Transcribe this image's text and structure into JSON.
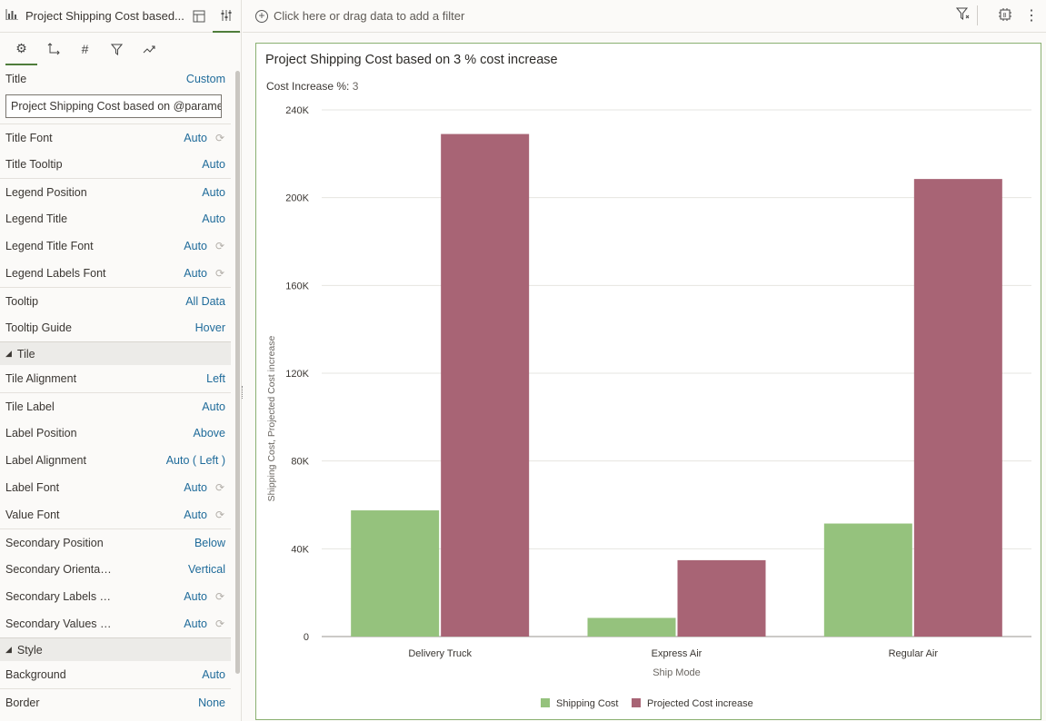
{
  "panel": {
    "viz_title": "Project Shipping Cost based...",
    "tabs": [
      "general",
      "axis",
      "values",
      "filters",
      "analytics"
    ],
    "title_row": {
      "label": "Title",
      "value": "Custom"
    },
    "title_input": "Project Shipping Cost based on @parameter",
    "general_rows": [
      {
        "label": "Title Font",
        "value": "Auto",
        "reset": true,
        "sep": true
      },
      {
        "label": "Title Tooltip",
        "value": "Auto",
        "reset": false,
        "sep": false
      },
      {
        "label": "Legend Position",
        "value": "Auto",
        "reset": false,
        "sep": true
      },
      {
        "label": "Legend Title",
        "value": "Auto",
        "reset": false,
        "sep": false
      },
      {
        "label": "Legend Title Font",
        "value": "Auto",
        "reset": true,
        "sep": false
      },
      {
        "label": "Legend Labels Font",
        "value": "Auto",
        "reset": true,
        "sep": false
      },
      {
        "label": "Tooltip",
        "value": "All Data",
        "reset": false,
        "sep": true
      },
      {
        "label": "Tooltip Guide",
        "value": "Hover",
        "reset": false,
        "sep": false
      }
    ],
    "tile_section": "Tile",
    "tile_rows": [
      {
        "label": "Tile Alignment",
        "value": "Left",
        "reset": false,
        "sep": false
      },
      {
        "label": "Tile Label",
        "value": "Auto",
        "reset": false,
        "sep": true
      },
      {
        "label": "Label Position",
        "value": "Above",
        "reset": false,
        "sep": false
      },
      {
        "label": "Label Alignment",
        "value": "Auto ( Left )",
        "reset": false,
        "sep": false
      },
      {
        "label": "Label Font",
        "value": "Auto",
        "reset": true,
        "sep": false
      },
      {
        "label": "Value Font",
        "value": "Auto",
        "reset": true,
        "sep": false
      },
      {
        "label": "Secondary Position",
        "value": "Below",
        "reset": false,
        "sep": true
      },
      {
        "label": "Secondary Orienta…",
        "value": "Vertical",
        "reset": false,
        "sep": false
      },
      {
        "label": "Secondary Labels …",
        "value": "Auto",
        "reset": true,
        "sep": false
      },
      {
        "label": "Secondary Values …",
        "value": "Auto",
        "reset": true,
        "sep": false
      }
    ],
    "style_section": "Style",
    "style_rows": [
      {
        "label": "Background",
        "value": "Auto",
        "reset": false,
        "sep": false
      },
      {
        "label": "Border",
        "value": "None",
        "reset": false,
        "sep": true
      }
    ]
  },
  "filter_bar": {
    "placeholder": "Click here or drag data to add a filter"
  },
  "viz": {
    "title": "Project Shipping Cost based on 3 % cost increase",
    "param_label": "Cost Increase %:",
    "param_value": "3"
  },
  "colors": {
    "shipping": "#95c27d",
    "projected": "#a86475",
    "accent": "#4f7d3b",
    "link": "#1f6b9a"
  },
  "chart_data": {
    "type": "bar",
    "title": "Project Shipping Cost based on 3 % cost increase",
    "xlabel": "Ship Mode",
    "ylabel": "Shipping Cost, Projected Cost increase",
    "categories": [
      "Delivery Truck",
      "Express Air",
      "Regular Air"
    ],
    "series": [
      {
        "name": "Shipping Cost",
        "values": [
          57500,
          8500,
          51500
        ]
      },
      {
        "name": "Projected Cost increase",
        "values": [
          229000,
          34800,
          208500
        ]
      }
    ],
    "ylim": [
      0,
      240000
    ],
    "yticks": [
      0,
      40000,
      80000,
      120000,
      160000,
      200000,
      240000
    ],
    "ytick_labels": [
      "0",
      "40K",
      "80K",
      "120K",
      "160K",
      "200K",
      "240K"
    ],
    "grid": true,
    "legend": "bottom"
  }
}
